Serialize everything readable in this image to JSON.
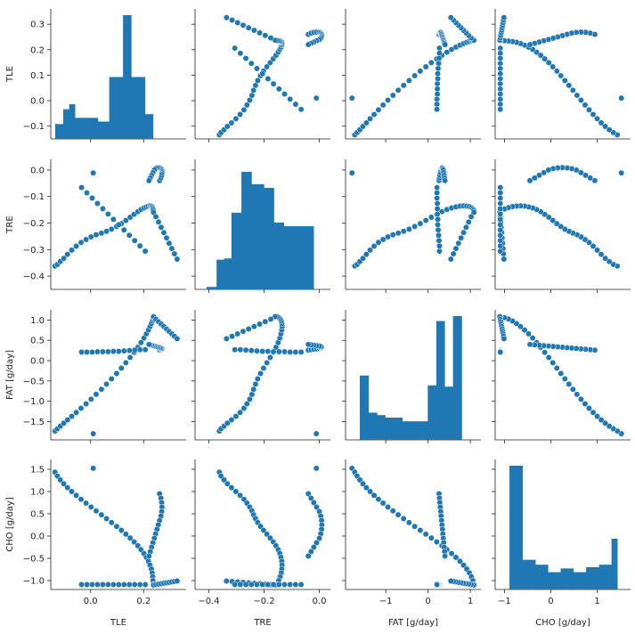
{
  "chart_data": {
    "type": "scatter",
    "layout": "pairplot",
    "variables": [
      "TLE",
      "TRE",
      "FAT  [g/day]",
      "CHO  [g/day]"
    ],
    "axis_titles": {
      "x": [
        "TLE",
        "TRE",
        "FAT  [g/day]",
        "CHO  [g/day]"
      ],
      "y": [
        "TLE",
        "TRE",
        "FAT  [g/day]",
        "CHO  [g/day]"
      ]
    },
    "ranges": [
      [
        -0.15,
        0.36
      ],
      [
        -0.45,
        0.04
      ],
      [
        -1.95,
        1.25
      ],
      [
        -1.2,
        1.72
      ]
    ],
    "ticks": [
      {
        "values": [
          -0.1,
          0.0,
          0.1,
          0.2,
          0.3
        ],
        "labels": [
          "−0.1",
          "0.0",
          "0.1",
          "0.2",
          "0.3"
        ]
      },
      {
        "values": [
          -0.4,
          -0.3,
          -0.2,
          -0.1,
          0.0
        ],
        "labels": [
          "−0.4",
          "−0.3",
          "−0.2",
          "−0.1",
          "0.0"
        ]
      },
      {
        "values": [
          -1.5,
          -1.0,
          -0.5,
          0.0,
          0.5,
          1.0
        ],
        "labels": [
          "−1.5",
          "−1.0",
          "−0.5",
          "0.0",
          "0.5",
          "1.0"
        ]
      },
      {
        "values": [
          -1.0,
          -0.5,
          0.0,
          0.5,
          1.0,
          1.5
        ],
        "labels": [
          "−1.0",
          "−0.5",
          "0.0",
          "0.5",
          "1.0",
          "1.5"
        ]
      }
    ],
    "x_ticks": [
      {
        "values": [
          0.0,
          0.2
        ],
        "labels": [
          "0.0",
          "0.2"
        ]
      },
      {
        "values": [
          -0.4,
          -0.2,
          0.0
        ],
        "labels": [
          "−0.4",
          "−0.2",
          "0.0"
        ]
      },
      {
        "values": [
          -1,
          0,
          1
        ],
        "labels": [
          "−1",
          "0",
          "1"
        ]
      },
      {
        "values": [
          -1,
          0,
          1
        ],
        "labels": [
          "−1",
          "0",
          "1"
        ]
      }
    ],
    "histograms": [
      {
        "edges": [
          -0.135,
          -0.1,
          -0.074,
          -0.05,
          -0.025,
          0.05,
          0.1,
          0.16,
          0.195,
          0.255,
          0.29,
          0.33
        ],
        "heights": [
          0.12,
          0.24,
          0.28,
          0.17,
          0.17,
          0.14,
          0.5,
          1.0,
          0.5,
          0.2,
          0.0
        ]
      },
      {
        "edges": [
          -0.43,
          -0.39,
          -0.36,
          -0.33,
          -0.29,
          -0.25,
          -0.2,
          -0.16,
          -0.12,
          -0.09,
          -0.04,
          0.0
        ],
        "heights": [
          0.02,
          0.24,
          0.25,
          0.62,
          0.95,
          0.85,
          0.82,
          0.54,
          0.51,
          0.51,
          0.51
        ]
      },
      {
        "edges": [
          -1.78,
          -1.55,
          -1.32,
          -1.1,
          -0.87,
          -0.64,
          -0.41,
          -0.18,
          0.05,
          0.28,
          0.5,
          0.73,
          0.96,
          1.05
        ],
        "heights": [
          0.52,
          0.22,
          0.2,
          0.18,
          0.18,
          0.15,
          0.15,
          0.15,
          0.44,
          0.96,
          0.43,
          1.0,
          0.0
        ]
      },
      {
        "edges": [
          -1.12,
          -0.8,
          -0.48,
          -0.17,
          0.15,
          0.46,
          0.78,
          1.1,
          1.41,
          1.55
        ],
        "heights": [
          1.0,
          0.24,
          0.2,
          0.14,
          0.17,
          0.14,
          0.18,
          0.2,
          0.41
        ]
      }
    ],
    "points": [
      [
        0.01,
        -0.011,
        -1.798,
        1.522
      ],
      [
        -0.134,
        -0.362,
        -1.732,
        1.435
      ],
      [
        -0.125,
        -0.356,
        -1.676,
        1.348
      ],
      [
        -0.114,
        -0.345,
        -1.612,
        1.261
      ],
      [
        -0.101,
        -0.333,
        -1.539,
        1.174
      ],
      [
        -0.087,
        -0.318,
        -1.458,
        1.087
      ],
      [
        -0.071,
        -0.302,
        -1.37,
        1.0
      ],
      [
        -0.054,
        -0.287,
        -1.275,
        0.913
      ],
      [
        -0.036,
        -0.273,
        -1.172,
        0.826
      ],
      [
        -0.017,
        -0.262,
        -1.063,
        0.739
      ],
      [
        0.002,
        -0.252,
        -0.949,
        0.652
      ],
      [
        0.021,
        -0.244,
        -0.829,
        0.565
      ],
      [
        0.041,
        -0.238,
        -0.705,
        0.478
      ],
      [
        0.06,
        -0.231,
        -0.578,
        0.391
      ],
      [
        0.079,
        -0.223,
        -0.448,
        0.304
      ],
      [
        0.098,
        -0.213,
        -0.316,
        0.217
      ],
      [
        0.116,
        -0.202,
        -0.184,
        0.13
      ],
      [
        0.133,
        -0.19,
        -0.052,
        0.043
      ],
      [
        0.149,
        -0.178,
        0.078,
        -0.044
      ],
      [
        0.164,
        -0.167,
        0.205,
        -0.131
      ],
      [
        0.178,
        -0.157,
        0.328,
        -0.218
      ],
      [
        0.19,
        -0.149,
        0.446,
        -0.305
      ],
      [
        0.201,
        -0.143,
        0.557,
        -0.392
      ],
      [
        0.21,
        -0.139,
        0.66,
        -0.479
      ],
      [
        0.218,
        -0.136,
        0.755,
        -0.566
      ],
      [
        0.224,
        -0.135,
        0.84,
        -0.653
      ],
      [
        0.229,
        -0.136,
        0.914,
        -0.74
      ],
      [
        0.232,
        -0.138,
        0.976,
        -0.827
      ],
      [
        0.234,
        -0.142,
        1.025,
        -0.914
      ],
      [
        0.235,
        -0.147,
        1.06,
        -1.001
      ],
      [
        0.236,
        -0.153,
        1.08,
        -1.088
      ],
      [
        0.237,
        -0.16,
        1.084,
        -1.1
      ],
      [
        0.246,
        -0.176,
        1.02,
        -1.09
      ],
      [
        0.256,
        -0.196,
        0.96,
        -1.08
      ],
      [
        0.266,
        -0.216,
        0.9,
        -1.07
      ],
      [
        0.276,
        -0.236,
        0.84,
        -1.06
      ],
      [
        0.286,
        -0.256,
        0.78,
        -1.05
      ],
      [
        0.296,
        -0.276,
        0.72,
        -1.04
      ],
      [
        0.306,
        -0.296,
        0.66,
        -1.03
      ],
      [
        0.316,
        -0.316,
        0.6,
        -1.02
      ],
      [
        0.326,
        -0.336,
        0.54,
        -1.01
      ],
      [
        0.206,
        -0.306,
        0.27,
        -1.09
      ],
      [
        0.186,
        -0.286,
        0.27,
        -1.09
      ],
      [
        0.166,
        -0.266,
        0.26,
        -1.09
      ],
      [
        0.146,
        -0.246,
        0.25,
        -1.09
      ],
      [
        0.126,
        -0.226,
        0.24,
        -1.09
      ],
      [
        0.106,
        -0.206,
        0.23,
        -1.09
      ],
      [
        0.086,
        -0.186,
        0.23,
        -1.09
      ],
      [
        0.066,
        -0.166,
        0.22,
        -1.09
      ],
      [
        0.046,
        -0.146,
        0.22,
        -1.09
      ],
      [
        0.026,
        -0.126,
        0.22,
        -1.09
      ],
      [
        0.006,
        -0.106,
        0.21,
        -1.09
      ],
      [
        -0.014,
        -0.086,
        0.21,
        -1.09
      ],
      [
        -0.034,
        -0.066,
        0.21,
        -1.09
      ],
      [
        0.26,
        -0.04,
        0.26,
        0.95
      ],
      [
        0.265,
        -0.03,
        0.27,
        0.85
      ],
      [
        0.268,
        -0.02,
        0.28,
        0.75
      ],
      [
        0.269,
        -0.01,
        0.29,
        0.65
      ],
      [
        0.268,
        0.0,
        0.3,
        0.55
      ],
      [
        0.265,
        0.005,
        0.31,
        0.45
      ],
      [
        0.26,
        0.008,
        0.32,
        0.35
      ],
      [
        0.255,
        0.009,
        0.33,
        0.25
      ],
      [
        0.25,
        0.008,
        0.34,
        0.15
      ],
      [
        0.245,
        0.005,
        0.35,
        0.05
      ],
      [
        0.24,
        0.0,
        0.36,
        -0.05
      ],
      [
        0.235,
        -0.01,
        0.37,
        -0.15
      ],
      [
        0.23,
        -0.02,
        0.38,
        -0.25
      ],
      [
        0.225,
        -0.03,
        0.39,
        -0.35
      ],
      [
        0.22,
        -0.04,
        0.4,
        -0.45
      ]
    ]
  }
}
